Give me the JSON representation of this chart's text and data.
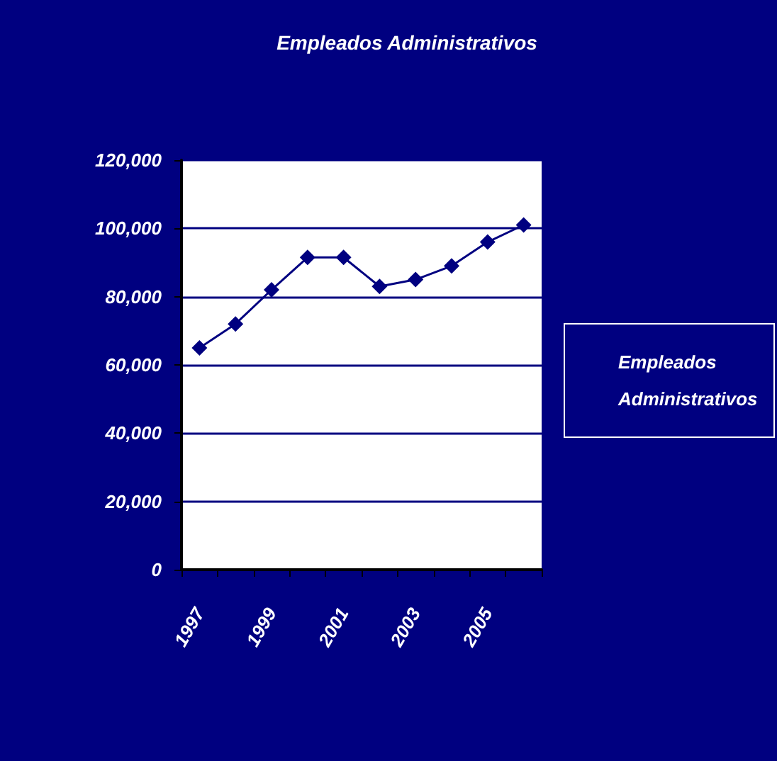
{
  "chart_data": {
    "type": "line",
    "title": "Empleados Administrativos",
    "categories": [
      "1997",
      null,
      "1999",
      null,
      "2001",
      null,
      "2003",
      null,
      "2005",
      null
    ],
    "series": [
      {
        "name": "Empleados Administrativos",
        "color": "#000080",
        "values": [
          65000,
          72000,
          82000,
          91500,
          91500,
          83000,
          85000,
          89000,
          96000,
          101000
        ]
      }
    ],
    "ylim": [
      0,
      120000
    ],
    "yticks": [
      0,
      {
        "value": 20000,
        "label": "20,000"
      },
      {
        "value": 40000,
        "label": "40,000"
      },
      {
        "value": 60000,
        "label": "60,000"
      },
      {
        "value": 80000,
        "label": "80,000"
      },
      {
        "value": 100000,
        "label": "100,000"
      },
      {
        "value": 120000,
        "label": "120,000"
      }
    ],
    "grid": "y",
    "legend": "right",
    "marker": "diamond",
    "line_style": "solid"
  }
}
